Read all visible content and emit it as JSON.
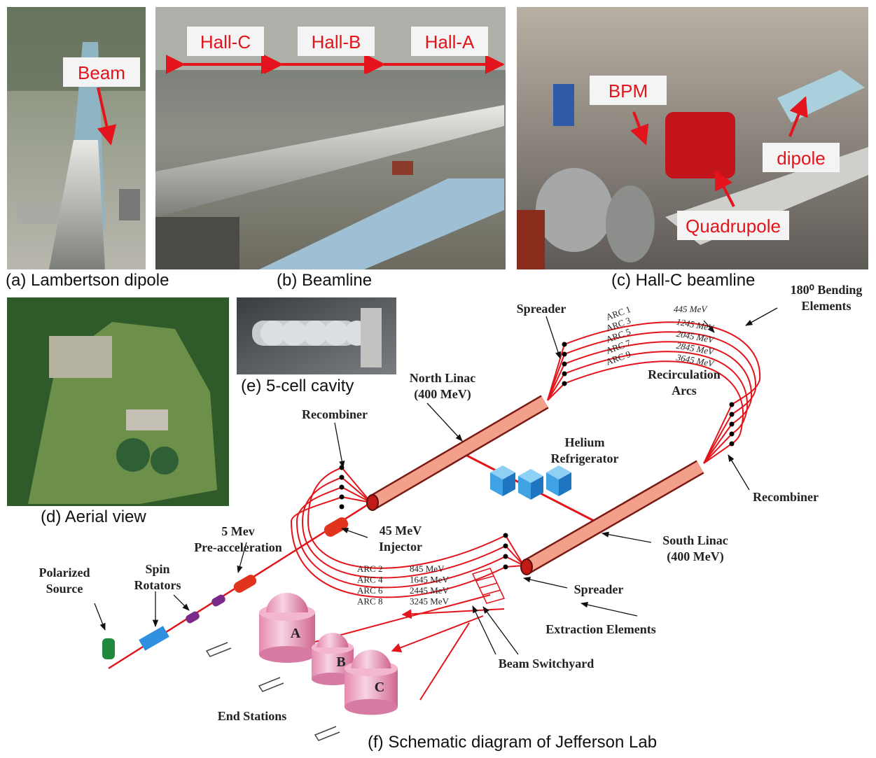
{
  "panels": [
    {
      "caption": "(a) Lambertson dipole",
      "tags": [
        "Beam"
      ]
    },
    {
      "caption": "(b) Beamline",
      "tags": [
        "Hall-C",
        "Hall-B",
        "Hall-A"
      ]
    },
    {
      "caption": "(c) Hall-C beamline",
      "tags": [
        "BPM",
        "dipole",
        "Quadrupole"
      ]
    },
    {
      "caption": "(d) Aerial view"
    },
    {
      "caption": "(e) 5-cell cavity"
    },
    {
      "caption": "(f) Schematic diagram of Jefferson Lab"
    }
  ],
  "schematic": {
    "labels": [
      {
        "lines": [
          "Spreader"
        ]
      },
      {
        "lines": [
          "180⁰ Bending",
          "Elements"
        ]
      },
      {
        "lines": [
          "Recirculation",
          "Arcs"
        ]
      },
      {
        "lines": [
          "North Linac",
          "(400 MeV)"
        ]
      },
      {
        "lines": [
          "Recombiner"
        ]
      },
      {
        "lines": [
          "Helium",
          "Refrigerator"
        ]
      },
      {
        "lines": [
          "Recombiner"
        ]
      },
      {
        "lines": [
          "5 Mev",
          "Pre-acceleration"
        ]
      },
      {
        "lines": [
          "45 MeV",
          "Injector"
        ]
      },
      {
        "lines": [
          "South Linac",
          "(400 MeV)"
        ]
      },
      {
        "lines": [
          "Spreader"
        ]
      },
      {
        "lines": [
          "Polarized",
          "Source"
        ]
      },
      {
        "lines": [
          "Spin",
          "Rotators"
        ]
      },
      {
        "lines": [
          "Extraction Elements"
        ]
      },
      {
        "lines": [
          "Beam Switchyard"
        ]
      },
      {
        "lines": [
          "End Stations"
        ]
      }
    ],
    "upper_arcs": [
      {
        "name": "ARC 1",
        "energy": "445 MeV"
      },
      {
        "name": "ARC 3",
        "energy": "1245 MeV"
      },
      {
        "name": "ARC 5",
        "energy": "2045 MeV"
      },
      {
        "name": "ARC 7",
        "energy": "2845 MeV"
      },
      {
        "name": "ARC 9",
        "energy": "3645 MeV"
      }
    ],
    "lower_arcs": [
      {
        "name": "ARC 2",
        "energy": "845 MeV"
      },
      {
        "name": "ARC 4",
        "energy": "1645 MeV"
      },
      {
        "name": "ARC 6",
        "energy": "2445 MeV"
      },
      {
        "name": "ARC 8",
        "energy": "3245 MeV"
      }
    ],
    "halls": [
      "A",
      "B",
      "C"
    ]
  }
}
